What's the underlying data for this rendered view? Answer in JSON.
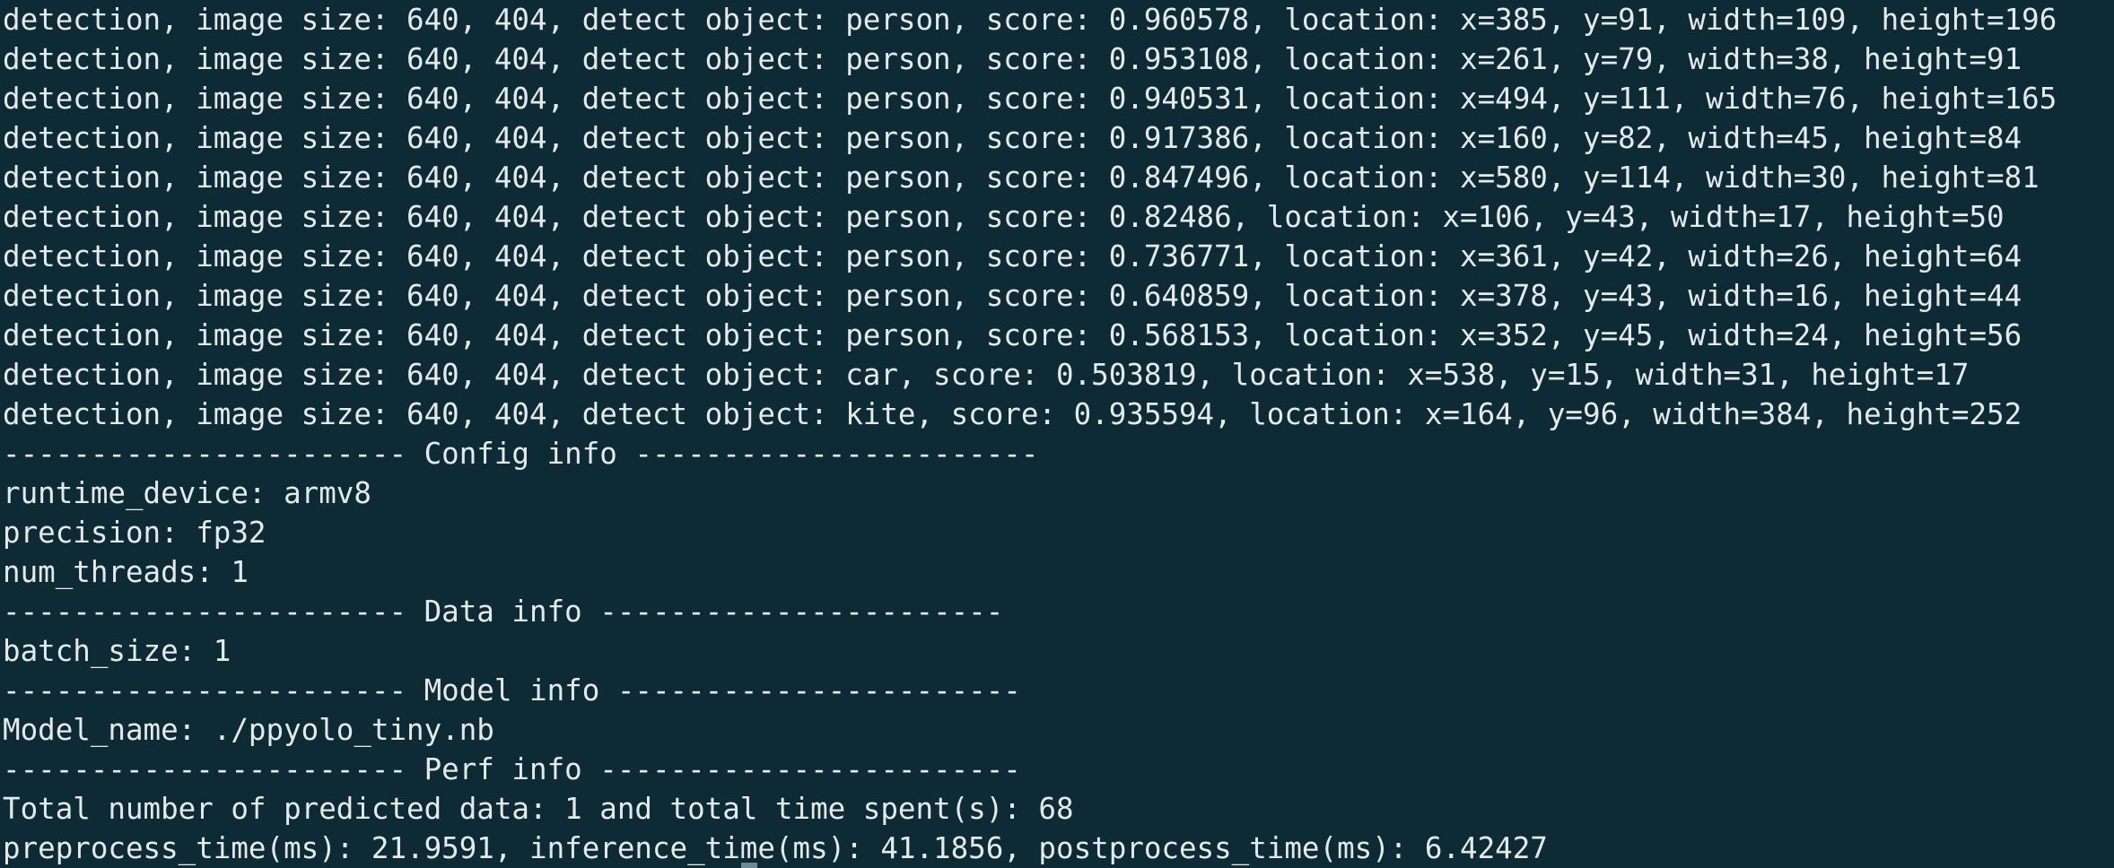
{
  "terminal": {
    "lines": [
      "detection, image size: 640, 404, detect object: person, score: 0.960578, location: x=385, y=91, width=109, height=196",
      "detection, image size: 640, 404, detect object: person, score: 0.953108, location: x=261, y=79, width=38, height=91",
      "detection, image size: 640, 404, detect object: person, score: 0.940531, location: x=494, y=111, width=76, height=165",
      "detection, image size: 640, 404, detect object: person, score: 0.917386, location: x=160, y=82, width=45, height=84",
      "detection, image size: 640, 404, detect object: person, score: 0.847496, location: x=580, y=114, width=30, height=81",
      "detection, image size: 640, 404, detect object: person, score: 0.82486, location: x=106, y=43, width=17, height=50",
      "detection, image size: 640, 404, detect object: person, score: 0.736771, location: x=361, y=42, width=26, height=64",
      "detection, image size: 640, 404, detect object: person, score: 0.640859, location: x=378, y=43, width=16, height=44",
      "detection, image size: 640, 404, detect object: person, score: 0.568153, location: x=352, y=45, width=24, height=56",
      "detection, image size: 640, 404, detect object: car, score: 0.503819, location: x=538, y=15, width=31, height=17",
      "detection, image size: 640, 404, detect object: kite, score: 0.935594, location: x=164, y=96, width=384, height=252",
      "----------------------- Config info -----------------------",
      "runtime_device: armv8",
      "precision: fp32",
      "num_threads: 1",
      "----------------------- Data info -----------------------",
      "batch_size: 1",
      "----------------------- Model info -----------------------",
      "Model_name: ./ppyolo_tiny.nb",
      "----------------------- Perf info ------------------------",
      "Total number of predicted data: 1 and total time spent(s): 68",
      "preprocess_time(ms): 21.9591, inference_time(ms): 41.1856, postprocess_time(ms): 6.42427"
    ]
  }
}
